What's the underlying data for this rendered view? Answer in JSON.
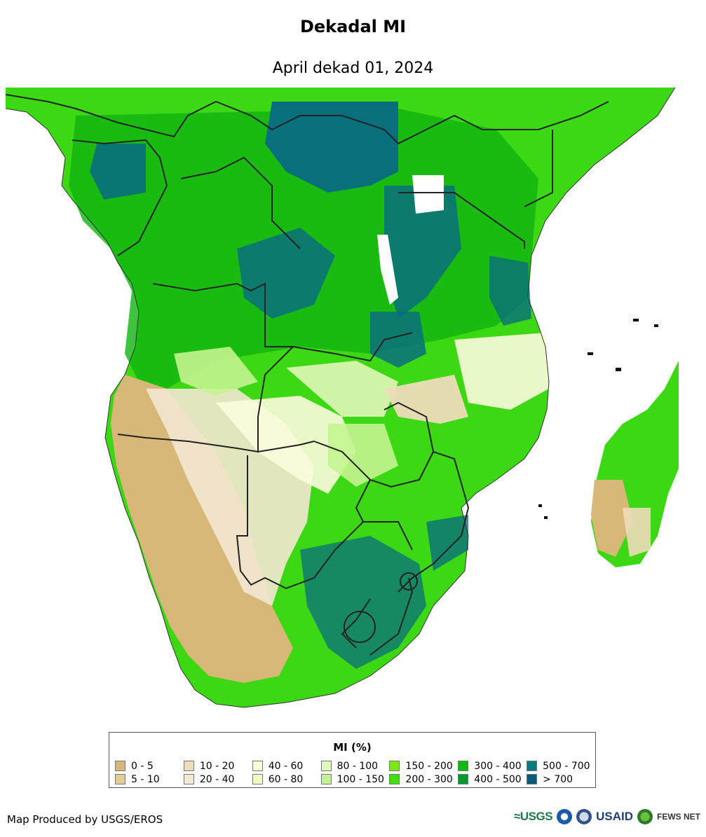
{
  "header": {
    "title": "Dekadal MI",
    "subtitle": "April dekad 01, 2024"
  },
  "map": {
    "region": "Southern Africa",
    "variable": "MI (%)"
  },
  "legend": {
    "title": "MI (%)",
    "items": [
      {
        "label": "0 - 5",
        "color": "#d8b878"
      },
      {
        "label": "5 - 10",
        "color": "#e4cc98"
      },
      {
        "label": "10 - 20",
        "color": "#efdcbb"
      },
      {
        "label": "20 - 40",
        "color": "#f4e8d2"
      },
      {
        "label": "40 - 60",
        "color": "#fcfcdc"
      },
      {
        "label": "60 - 80",
        "color": "#f4fcc4"
      },
      {
        "label": "80 - 100",
        "color": "#e0f8b8"
      },
      {
        "label": "100 - 150",
        "color": "#c4f490"
      },
      {
        "label": "150 - 200",
        "color": "#7ce818"
      },
      {
        "label": "200 - 300",
        "color": "#40e010"
      },
      {
        "label": "300 - 400",
        "color": "#10b810"
      },
      {
        "label": "400 - 500",
        "color": "#089830"
      },
      {
        "label": "500 - 700",
        "color": "#0a7a80"
      },
      {
        "label": "> 700",
        "color": "#0a5a78"
      }
    ]
  },
  "footer": {
    "credit": "Map Produced by USGS/EROS",
    "logos": {
      "usgs": "≈USGS",
      "usaid": "USAID",
      "fews": "FEWS NET"
    }
  }
}
